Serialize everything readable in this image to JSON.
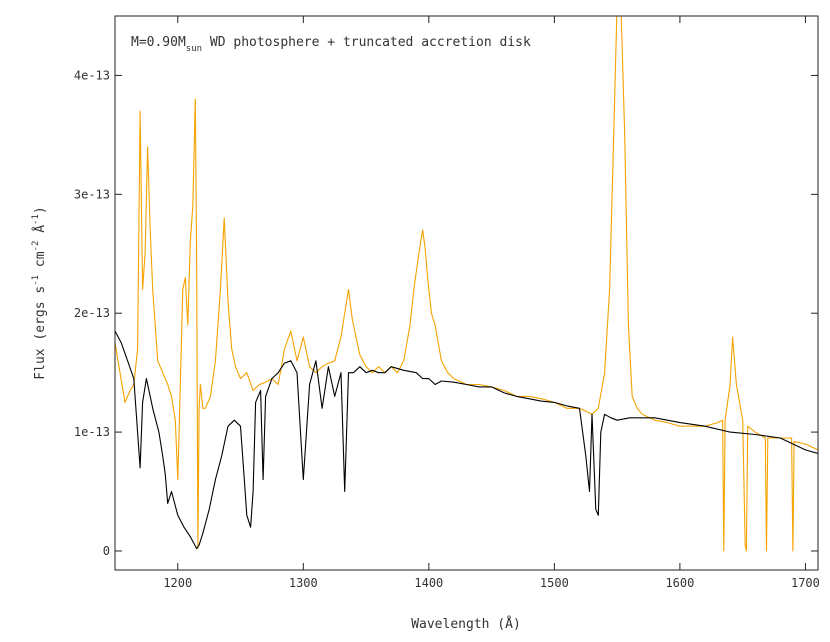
{
  "chart_data": {
    "type": "line",
    "title": "",
    "annotation": {
      "prefix": "M=0.90M",
      "subscript": "sun",
      "suffix": " WD photosphere + truncated accretion disk"
    },
    "xlabel": "Wavelength (Å)",
    "ylabel": {
      "p1": "Flux (ergs s",
      "p2": "-1",
      "p3": " cm",
      "p4": "-2",
      "p5": " Å",
      "p6": "-1",
      "p7": ")"
    },
    "xlim": [
      1150,
      1710
    ],
    "ylim": [
      -1.6e-14,
      4.5e-13
    ],
    "xticks": [
      {
        "value": 1200,
        "label": "1200"
      },
      {
        "value": 1300,
        "label": "1300"
      },
      {
        "value": 1400,
        "label": "1400"
      },
      {
        "value": 1500,
        "label": "1500"
      },
      {
        "value": 1600,
        "label": "1600"
      },
      {
        "value": 1700,
        "label": "1700"
      }
    ],
    "yticks": [
      {
        "value": 0,
        "label": "0"
      },
      {
        "value": 1e-13,
        "label": "1e-13"
      },
      {
        "value": 2e-13,
        "label": "2e-13"
      },
      {
        "value": 3e-13,
        "label": "3e-13"
      },
      {
        "value": 4e-13,
        "label": "4e-13"
      }
    ],
    "series": [
      {
        "color": "#f5a300",
        "role": "observed",
        "x": [
          1150,
          1154,
          1158,
          1162,
          1165,
          1168,
          1170,
          1172,
          1174,
          1176,
          1178,
          1180,
          1184,
          1188,
          1192,
          1195,
          1198,
          1200,
          1202,
          1204,
          1206,
          1208,
          1210,
          1212,
          1214,
          1215,
          1216,
          1217,
          1218,
          1220,
          1222,
          1226,
          1230,
          1234,
          1237,
          1240,
          1243,
          1246,
          1250,
          1255,
          1260,
          1265,
          1270,
          1275,
          1280,
          1285,
          1290,
          1295,
          1300,
          1305,
          1310,
          1315,
          1320,
          1325,
          1330,
          1333,
          1336,
          1339,
          1342,
          1345,
          1350,
          1355,
          1360,
          1365,
          1370,
          1375,
          1380,
          1385,
          1388,
          1392,
          1395,
          1397,
          1399,
          1402,
          1405,
          1410,
          1415,
          1420,
          1430,
          1440,
          1450,
          1460,
          1470,
          1480,
          1490,
          1500,
          1510,
          1520,
          1530,
          1535,
          1540,
          1544,
          1547,
          1550,
          1553,
          1556,
          1559,
          1562,
          1566,
          1570,
          1580,
          1590,
          1600,
          1610,
          1620,
          1630,
          1634,
          1635,
          1636,
          1640,
          1642,
          1645,
          1650,
          1652,
          1653,
          1654,
          1660,
          1668,
          1669,
          1670,
          1680,
          1689,
          1690,
          1691,
          1700,
          1710
        ],
        "y": [
          1.75e-13,
          1.5e-13,
          1.25e-13,
          1.35e-13,
          1.4e-13,
          1.7e-13,
          3.7e-13,
          2.2e-13,
          2.5e-13,
          3.4e-13,
          2.7e-13,
          2.2e-13,
          1.6e-13,
          1.5e-13,
          1.4e-13,
          1.3e-13,
          1.1e-13,
          6e-14,
          1.4e-13,
          2.2e-13,
          2.3e-13,
          1.9e-13,
          2.6e-13,
          2.9e-13,
          3.8e-13,
          2.5e-13,
          2e-15,
          1.2e-13,
          1.4e-13,
          1.2e-13,
          1.2e-13,
          1.3e-13,
          1.6e-13,
          2.2e-13,
          2.8e-13,
          2.1e-13,
          1.7e-13,
          1.55e-13,
          1.45e-13,
          1.5e-13,
          1.35e-13,
          1.4e-13,
          1.42e-13,
          1.45e-13,
          1.4e-13,
          1.7e-13,
          1.85e-13,
          1.6e-13,
          1.8e-13,
          1.55e-13,
          1.5e-13,
          1.55e-13,
          1.58e-13,
          1.6e-13,
          1.8e-13,
          2e-13,
          2.2e-13,
          1.95e-13,
          1.8e-13,
          1.65e-13,
          1.55e-13,
          1.5e-13,
          1.55e-13,
          1.5e-13,
          1.55e-13,
          1.5e-13,
          1.6e-13,
          1.9e-13,
          2.2e-13,
          2.5e-13,
          2.7e-13,
          2.55e-13,
          2.3e-13,
          2e-13,
          1.9e-13,
          1.6e-13,
          1.5e-13,
          1.45e-13,
          1.4e-13,
          1.4e-13,
          1.38e-13,
          1.35e-13,
          1.3e-13,
          1.3e-13,
          1.28e-13,
          1.25e-13,
          1.2e-13,
          1.2e-13,
          1.15e-13,
          1.2e-13,
          1.5e-13,
          2.2e-13,
          3.4e-13,
          4.6e-13,
          4.6e-13,
          3.5e-13,
          1.9e-13,
          1.3e-13,
          1.2e-13,
          1.15e-13,
          1.1e-13,
          1.08e-13,
          1.05e-13,
          1.05e-13,
          1.05e-13,
          1.08e-13,
          1.1e-13,
          0.0,
          1.1e-13,
          1.4e-13,
          1.8e-13,
          1.4e-13,
          1.1e-13,
          5e-15,
          0.0,
          1.05e-13,
          1e-13,
          9.5e-14,
          0.0,
          9.5e-14,
          9.5e-14,
          9.5e-14,
          0.0,
          9.2e-14,
          9e-14,
          8.5e-14
        ]
      },
      {
        "color": "#000000",
        "role": "model",
        "x": [
          1150,
          1155,
          1160,
          1165,
          1170,
          1172,
          1175,
          1178,
          1180,
          1185,
          1188,
          1190,
          1192,
          1195,
          1200,
          1205,
          1210,
          1213,
          1215,
          1217,
          1220,
          1225,
          1230,
          1235,
          1240,
          1245,
          1250,
          1253,
          1255,
          1258,
          1260,
          1262,
          1264,
          1266,
          1268,
          1270,
          1275,
          1280,
          1285,
          1290,
          1295,
          1300,
          1305,
          1310,
          1315,
          1320,
          1325,
          1330,
          1333,
          1336,
          1340,
          1345,
          1350,
          1355,
          1360,
          1365,
          1370,
          1380,
          1390,
          1395,
          1400,
          1405,
          1410,
          1420,
          1430,
          1440,
          1450,
          1460,
          1470,
          1480,
          1490,
          1500,
          1510,
          1520,
          1525,
          1528,
          1530,
          1533,
          1535,
          1537,
          1540,
          1545,
          1550,
          1560,
          1570,
          1580,
          1590,
          1600,
          1620,
          1640,
          1660,
          1680,
          1700,
          1710
        ],
        "y": [
          1.85e-13,
          1.75e-13,
          1.6e-13,
          1.45e-13,
          7e-14,
          1.25e-13,
          1.45e-13,
          1.3e-13,
          1.2e-13,
          1e-13,
          8e-14,
          6.5e-14,
          4e-14,
          5e-14,
          3e-14,
          2e-14,
          1.2e-14,
          6e-15,
          2e-15,
          5e-15,
          1.5e-14,
          3.5e-14,
          6e-14,
          8e-14,
          1.05e-13,
          1.1e-13,
          1.05e-13,
          6e-14,
          3e-14,
          2e-14,
          5e-14,
          1.25e-13,
          1.3e-13,
          1.35e-13,
          6e-14,
          1.3e-13,
          1.45e-13,
          1.5e-13,
          1.58e-13,
          1.6e-13,
          1.5e-13,
          6e-14,
          1.4e-13,
          1.6e-13,
          1.2e-13,
          1.55e-13,
          1.3e-13,
          1.5e-13,
          5e-14,
          1.5e-13,
          1.5e-13,
          1.55e-13,
          1.5e-13,
          1.52e-13,
          1.5e-13,
          1.5e-13,
          1.55e-13,
          1.52e-13,
          1.5e-13,
          1.45e-13,
          1.45e-13,
          1.4e-13,
          1.43e-13,
          1.42e-13,
          1.4e-13,
          1.38e-13,
          1.38e-13,
          1.33e-13,
          1.3e-13,
          1.28e-13,
          1.26e-13,
          1.25e-13,
          1.22e-13,
          1.2e-13,
          8e-14,
          5e-14,
          1.15e-13,
          3.5e-14,
          3e-14,
          1e-13,
          1.15e-13,
          1.12e-13,
          1.1e-13,
          1.12e-13,
          1.12e-13,
          1.12e-13,
          1.1e-13,
          1.08e-13,
          1.05e-13,
          1e-13,
          9.8e-14,
          9.5e-14,
          8.5e-14,
          8.2e-14
        ]
      }
    ]
  }
}
